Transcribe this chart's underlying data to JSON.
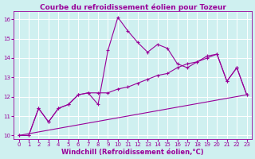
{
  "title": "Courbe du refroidissement éolien pour Tozeur",
  "xlabel": "Windchill (Refroidissement éolien,°C)",
  "xlim": [
    -0.5,
    23.5
  ],
  "ylim": [
    9.8,
    16.4
  ],
  "yticks": [
    10,
    11,
    12,
    13,
    14,
    15,
    16
  ],
  "xticks": [
    0,
    1,
    2,
    3,
    4,
    5,
    6,
    7,
    8,
    9,
    10,
    11,
    12,
    13,
    14,
    15,
    16,
    17,
    18,
    19,
    20,
    21,
    22,
    23
  ],
  "bg_color": "#cff0f0",
  "line_color": "#990099",
  "grid_color": "#ffffff",
  "line1_x": [
    0,
    1,
    2,
    3,
    4,
    5,
    6,
    7,
    8,
    9,
    10,
    11,
    12,
    13,
    14,
    15,
    16,
    17,
    18,
    19,
    20,
    21,
    22,
    23
  ],
  "line1_y": [
    10.0,
    10.0,
    11.4,
    10.7,
    11.4,
    11.6,
    12.1,
    12.2,
    11.6,
    14.4,
    16.1,
    15.4,
    14.8,
    14.3,
    14.7,
    14.5,
    13.7,
    13.5,
    13.8,
    14.1,
    14.2,
    12.8,
    13.5,
    12.1
  ],
  "line2_x": [
    0,
    1,
    2,
    3,
    4,
    5,
    6,
    7,
    8,
    9,
    10,
    11,
    12,
    13,
    14,
    15,
    16,
    17,
    18,
    19,
    20,
    21,
    22,
    23
  ],
  "line2_y": [
    10.0,
    10.0,
    11.4,
    10.7,
    11.4,
    11.6,
    12.1,
    12.2,
    12.2,
    12.2,
    12.4,
    12.5,
    12.7,
    12.9,
    13.1,
    13.2,
    13.5,
    13.7,
    13.8,
    14.0,
    14.2,
    12.8,
    13.5,
    12.1
  ],
  "line3_x": [
    0,
    23
  ],
  "line3_y": [
    10.0,
    12.1
  ],
  "title_fontsize": 6.5,
  "xlabel_fontsize": 6.0,
  "tick_fontsize": 5.0
}
